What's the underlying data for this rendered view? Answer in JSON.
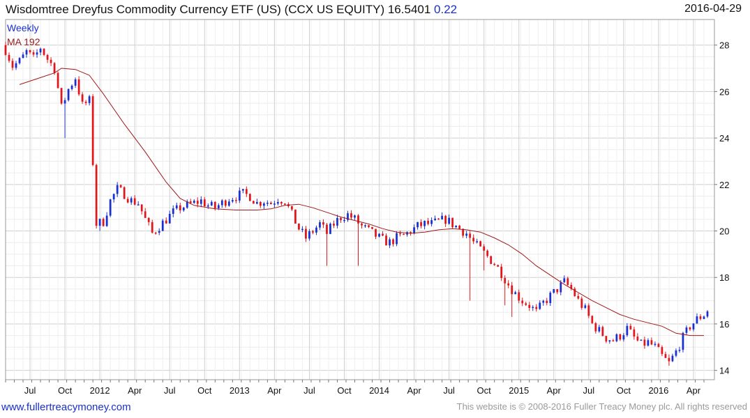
{
  "header": {
    "title": "Wisdomtree Dreyfus Commodity Currency ETF (US) (CCX US EQUITY) 16.5401",
    "change": "0.22",
    "date": "2016-04-29"
  },
  "footer": {
    "website": "www.fullertreacymoney.com",
    "copyright": "This website is © 2008-2016 Fuller Treacy Money plc. All rights reserved"
  },
  "colors": {
    "up": "#1a2fd0",
    "down": "#e0161b",
    "ma": "#a01818",
    "grid": "#d6d6d6",
    "text": "#111111"
  },
  "chart_data": {
    "type": "candlestick",
    "frequency": "Weekly",
    "title": "Wisdomtree Dreyfus Commodity Currency ETF (US) (CCX US EQUITY)",
    "last_price": 16.5401,
    "change": 0.22,
    "legend": [
      "Weekly",
      "MA 192"
    ],
    "legend_position": "top-left",
    "ylim": [
      13.6,
      29.1
    ],
    "xlim": [
      0,
      203
    ],
    "y_ticks": [
      14,
      16,
      18,
      20,
      22,
      24,
      26,
      28
    ],
    "x_ticks": [
      {
        "label": "Jul",
        "week": 7
      },
      {
        "label": "Oct",
        "week": 17
      },
      {
        "label": "2012",
        "week": 27
      },
      {
        "label": "Apr",
        "week": 37
      },
      {
        "label": "Jul",
        "week": 47
      },
      {
        "label": "Oct",
        "week": 57
      },
      {
        "label": "2013",
        "week": 67
      },
      {
        "label": "Apr",
        "week": 77
      },
      {
        "label": "Jul",
        "week": 87
      },
      {
        "label": "Oct",
        "week": 97
      },
      {
        "label": "2014",
        "week": 107
      },
      {
        "label": "Apr",
        "week": 117
      },
      {
        "label": "Jul",
        "week": 127
      },
      {
        "label": "Oct",
        "week": 137
      },
      {
        "label": "2015",
        "week": 147
      },
      {
        "label": "Apr",
        "week": 157
      },
      {
        "label": "Jul",
        "week": 167
      },
      {
        "label": "Oct",
        "week": 177
      },
      {
        "label": "2016",
        "week": 187
      },
      {
        "label": "Apr",
        "week": 197
      }
    ],
    "close_anchors": [
      [
        0,
        27.8
      ],
      [
        2,
        27.1
      ],
      [
        4,
        27.3
      ],
      [
        6,
        27.7
      ],
      [
        8,
        27.4
      ],
      [
        10,
        27.9
      ],
      [
        12,
        27.4
      ],
      [
        14,
        27.0
      ],
      [
        16,
        25.3
      ],
      [
        18,
        26.1
      ],
      [
        20,
        26.6
      ],
      [
        22,
        25.4
      ],
      [
        24,
        25.6
      ],
      [
        26,
        20.3
      ],
      [
        28,
        20.4
      ],
      [
        30,
        21.3
      ],
      [
        32,
        21.8
      ],
      [
        34,
        21.6
      ],
      [
        36,
        21.3
      ],
      [
        38,
        21.2
      ],
      [
        40,
        20.5
      ],
      [
        42,
        19.9
      ],
      [
        44,
        20.2
      ],
      [
        46,
        20.5
      ],
      [
        48,
        20.8
      ],
      [
        50,
        21.0
      ],
      [
        52,
        21.1
      ],
      [
        54,
        21.2
      ],
      [
        56,
        21.3
      ],
      [
        58,
        21.1
      ],
      [
        60,
        21.0
      ],
      [
        62,
        21.2
      ],
      [
        64,
        21.4
      ],
      [
        66,
        21.5
      ],
      [
        68,
        21.6
      ],
      [
        70,
        21.5
      ],
      [
        72,
        21.2
      ],
      [
        74,
        21.3
      ],
      [
        76,
        21.2
      ],
      [
        78,
        21.4
      ],
      [
        80,
        21.3
      ],
      [
        82,
        20.7
      ],
      [
        84,
        20.1
      ],
      [
        86,
        19.7
      ],
      [
        88,
        20.0
      ],
      [
        90,
        20.3
      ],
      [
        92,
        19.9
      ],
      [
        94,
        20.3
      ],
      [
        96,
        20.6
      ],
      [
        98,
        20.7
      ],
      [
        100,
        20.5
      ],
      [
        102,
        20.2
      ],
      [
        104,
        20.0
      ],
      [
        106,
        19.8
      ],
      [
        108,
        19.6
      ],
      [
        110,
        19.5
      ],
      [
        112,
        19.7
      ],
      [
        114,
        19.8
      ],
      [
        116,
        20.0
      ],
      [
        118,
        20.2
      ],
      [
        120,
        20.3
      ],
      [
        122,
        20.3
      ],
      [
        124,
        20.4
      ],
      [
        126,
        20.5
      ],
      [
        128,
        20.3
      ],
      [
        130,
        20.1
      ],
      [
        132,
        19.9
      ],
      [
        134,
        19.5
      ],
      [
        136,
        19.2
      ],
      [
        138,
        18.9
      ],
      [
        140,
        18.6
      ],
      [
        142,
        18.2
      ],
      [
        144,
        17.7
      ],
      [
        146,
        17.3
      ],
      [
        148,
        17.0
      ],
      [
        150,
        16.8
      ],
      [
        152,
        16.5
      ],
      [
        154,
        16.9
      ],
      [
        156,
        17.2
      ],
      [
        158,
        17.5
      ],
      [
        160,
        17.8
      ],
      [
        162,
        17.5
      ],
      [
        164,
        17.0
      ],
      [
        166,
        16.6
      ],
      [
        168,
        16.0
      ],
      [
        170,
        15.7
      ],
      [
        172,
        15.4
      ],
      [
        174,
        15.3
      ],
      [
        176,
        15.5
      ],
      [
        178,
        15.8
      ],
      [
        180,
        15.4
      ],
      [
        182,
        15.1
      ],
      [
        184,
        15.2
      ],
      [
        186,
        15.0
      ],
      [
        188,
        14.6
      ],
      [
        190,
        14.3
      ],
      [
        192,
        14.8
      ],
      [
        194,
        15.4
      ],
      [
        196,
        15.9
      ],
      [
        198,
        16.2
      ],
      [
        200,
        16.4
      ],
      [
        201,
        16.54
      ]
    ],
    "wicks": [
      {
        "week": 17,
        "low": 24.0
      },
      {
        "week": 27,
        "low": 20.0
      },
      {
        "week": 33,
        "high": 22.0
      },
      {
        "week": 92,
        "low": 18.5
      },
      {
        "week": 101,
        "low": 18.5
      },
      {
        "week": 133,
        "low": 17.0
      },
      {
        "week": 137,
        "low": 18.3
      },
      {
        "week": 143,
        "low": 16.8
      },
      {
        "week": 145,
        "low": 16.3
      },
      {
        "week": 190,
        "low": 14.2
      }
    ],
    "moving_average": {
      "name": "MA 192",
      "points": [
        [
          4,
          26.3
        ],
        [
          10,
          26.6
        ],
        [
          14,
          26.8
        ],
        [
          16,
          27.0
        ],
        [
          20,
          26.95
        ],
        [
          24,
          26.7
        ],
        [
          28,
          25.9
        ],
        [
          34,
          24.6
        ],
        [
          40,
          23.4
        ],
        [
          46,
          22.1
        ],
        [
          50,
          21.4
        ],
        [
          54,
          21.1
        ],
        [
          60,
          20.95
        ],
        [
          66,
          20.9
        ],
        [
          72,
          20.9
        ],
        [
          76,
          20.95
        ],
        [
          80,
          21.1
        ],
        [
          84,
          21.15
        ],
        [
          88,
          21.0
        ],
        [
          92,
          20.8
        ],
        [
          96,
          20.6
        ],
        [
          100,
          20.45
        ],
        [
          104,
          20.3
        ],
        [
          108,
          20.1
        ],
        [
          112,
          19.95
        ],
        [
          116,
          19.9
        ],
        [
          120,
          19.95
        ],
        [
          124,
          20.05
        ],
        [
          128,
          20.1
        ],
        [
          132,
          20.05
        ],
        [
          136,
          19.95
        ],
        [
          140,
          19.7
        ],
        [
          144,
          19.4
        ],
        [
          148,
          19.0
        ],
        [
          152,
          18.5
        ],
        [
          156,
          18.1
        ],
        [
          160,
          17.7
        ],
        [
          164,
          17.35
        ],
        [
          168,
          17.0
        ],
        [
          172,
          16.7
        ],
        [
          176,
          16.4
        ],
        [
          180,
          16.2
        ],
        [
          184,
          16.05
        ],
        [
          188,
          15.9
        ],
        [
          192,
          15.6
        ],
        [
          196,
          15.5
        ],
        [
          200,
          15.5
        ]
      ]
    }
  }
}
